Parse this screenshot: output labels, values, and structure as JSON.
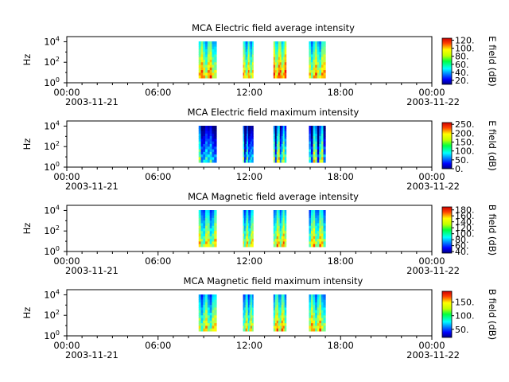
{
  "chart_data": [
    {
      "type": "heatmap",
      "title": "MCA  Electric field average intensity",
      "ylabel": "Hz",
      "colorbar_label": "E field (dB)",
      "colorbar_ticks": [
        "120.",
        "100.",
        "80.",
        "60.",
        "40.",
        "20."
      ],
      "colorbar_range": [
        10,
        125
      ],
      "y_ticks": [
        "4",
        "2",
        "0"
      ],
      "x_ticks": [
        "00:00",
        "06:00",
        "12:00",
        "18:00",
        "00:00"
      ],
      "x_start_date": "2003-11-21",
      "x_end_date": "2003-11-22",
      "x_range_hours": [
        0,
        24
      ],
      "y_scale": "log",
      "y_exponent_range": [
        0,
        4.5
      ],
      "segments": [
        {
          "start": "08:40",
          "end": "09:50",
          "color_level": 0.55
        },
        {
          "start": "11:35",
          "end": "12:15",
          "color_level": 0.5
        },
        {
          "start": "13:35",
          "end": "14:25",
          "color_level": 0.6
        },
        {
          "start": "15:55",
          "end": "17:00",
          "color_level": 0.52
        }
      ]
    },
    {
      "type": "heatmap",
      "title": "MCA  Electric field maximum intensity",
      "ylabel": "Hz",
      "colorbar_label": "E field (dB)",
      "colorbar_ticks": [
        "250.",
        "200.",
        "150.",
        "100.",
        "50.",
        "0."
      ],
      "colorbar_range": [
        0,
        260
      ],
      "y_ticks": [
        "4",
        "2",
        "0"
      ],
      "x_ticks": [
        "00:00",
        "06:00",
        "12:00",
        "18:00",
        "00:00"
      ],
      "x_start_date": "2003-11-21",
      "x_end_date": "2003-11-22",
      "x_range_hours": [
        0,
        24
      ],
      "y_scale": "log",
      "y_exponent_range": [
        0,
        4.5
      ],
      "segments": [
        {
          "start": "08:40",
          "end": "09:50",
          "color_level": 0.3
        },
        {
          "start": "11:35",
          "end": "12:15",
          "color_level": 0.28
        },
        {
          "start": "13:35",
          "end": "14:25",
          "color_level": 0.42
        },
        {
          "start": "15:55",
          "end": "17:00",
          "color_level": 0.38
        }
      ]
    },
    {
      "type": "heatmap",
      "title": "MCA  Magnetic field average intensity",
      "ylabel": "Hz",
      "colorbar_label": "B field (dB)",
      "colorbar_ticks": [
        "180.",
        "160.",
        "140.",
        "120.",
        "100.",
        "80.",
        "60.",
        "40."
      ],
      "colorbar_range": [
        35,
        190
      ],
      "y_ticks": [
        "4",
        "2",
        "0"
      ],
      "x_ticks": [
        "00:00",
        "06:00",
        "12:00",
        "18:00",
        "00:00"
      ],
      "x_start_date": "2003-11-21",
      "x_end_date": "2003-11-22",
      "x_range_hours": [
        0,
        24
      ],
      "y_scale": "log",
      "y_exponent_range": [
        0,
        4.5
      ],
      "segments": [
        {
          "start": "08:40",
          "end": "09:50",
          "color_level": 0.45
        },
        {
          "start": "11:35",
          "end": "12:15",
          "color_level": 0.45
        },
        {
          "start": "13:35",
          "end": "14:25",
          "color_level": 0.5
        },
        {
          "start": "15:55",
          "end": "17:00",
          "color_level": 0.48
        }
      ]
    },
    {
      "type": "heatmap",
      "title": "MCA  Magnetic field maximum intensity",
      "ylabel": "Hz",
      "colorbar_label": "B field (dB)",
      "colorbar_ticks": [
        "150.",
        "100.",
        "50."
      ],
      "colorbar_range": [
        20,
        190
      ],
      "y_ticks": [
        "4",
        "2",
        "0"
      ],
      "x_ticks": [
        "00:00",
        "06:00",
        "12:00",
        "18:00",
        "00:00"
      ],
      "x_start_date": "2003-11-21",
      "x_end_date": "2003-11-22",
      "x_range_hours": [
        0,
        24
      ],
      "y_scale": "log",
      "y_exponent_range": [
        0,
        4.5
      ],
      "segments": [
        {
          "start": "08:40",
          "end": "09:50",
          "color_level": 0.45
        },
        {
          "start": "11:35",
          "end": "12:15",
          "color_level": 0.45
        },
        {
          "start": "13:35",
          "end": "14:25",
          "color_level": 0.52
        },
        {
          "start": "15:55",
          "end": "17:00",
          "color_level": 0.5
        }
      ]
    }
  ]
}
